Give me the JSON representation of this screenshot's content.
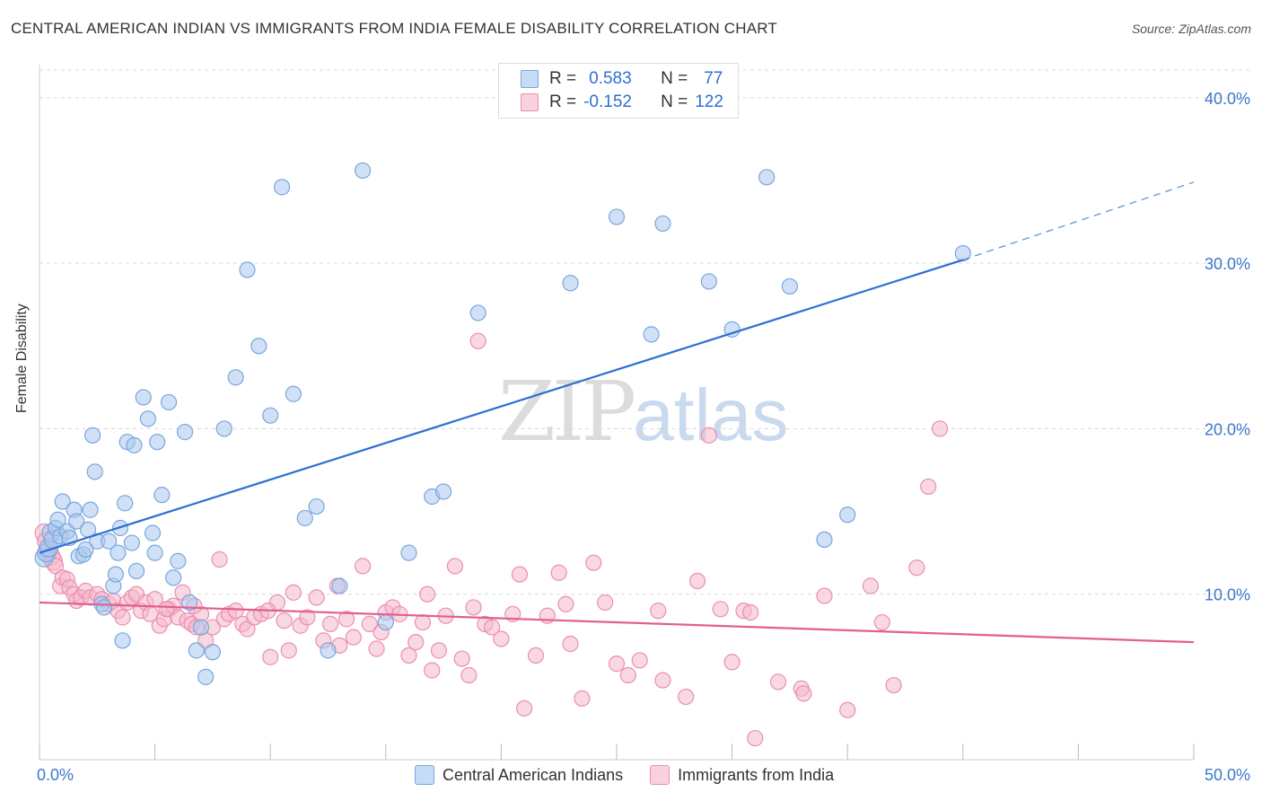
{
  "title": "CENTRAL AMERICAN INDIAN VS IMMIGRANTS FROM INDIA FEMALE DISABILITY CORRELATION CHART",
  "source": "Source: ZipAtlas.com",
  "watermark": {
    "zip": "ZIP",
    "atlas": "atlas"
  },
  "legend_top": {
    "rows": [
      {
        "r_label": "R =",
        "r_value": "0.583",
        "n_label": "N =",
        "n_value": "77"
      },
      {
        "r_label": "R =",
        "r_value": "-0.152",
        "n_label": "N =",
        "n_value": "122"
      }
    ]
  },
  "colors": {
    "blue_fill": "#a9c8f0",
    "blue_stroke": "#7aa6dc",
    "blue_line": "#2f6fd0",
    "pink_fill": "#f6b8cb",
    "pink_stroke": "#e98fb0",
    "pink_line": "#e0608f",
    "grid": "#d9d9d9",
    "axis_text": "#3a78c9"
  },
  "chart_data": {
    "type": "scatter",
    "title": "CENTRAL AMERICAN INDIAN VS IMMIGRANTS FROM INDIA FEMALE DISABILITY CORRELATION CHART",
    "xlabel": "",
    "ylabel": "Female Disability",
    "xlim": [
      0,
      50
    ],
    "ylim": [
      0,
      42
    ],
    "x_tick_labels": [
      "0.0%",
      "50.0%"
    ],
    "y_ticks": [
      10,
      20,
      30,
      40
    ],
    "y_tick_labels": [
      "10.0%",
      "20.0%",
      "30.0%",
      "40.0%"
    ],
    "grid": true,
    "legend_position": "top-center",
    "series": [
      {
        "name": "Central American Indians",
        "r": 0.583,
        "n": 77,
        "trend": {
          "x0": 0,
          "y0": 12.5,
          "x1": 40,
          "y1": 30.2,
          "dash_to_x": 50,
          "dash_to_y": 34.9
        },
        "points": [
          [
            0.2,
            12.2
          ],
          [
            0.3,
            12.5
          ],
          [
            0.4,
            12.8
          ],
          [
            0.5,
            13.7
          ],
          [
            0.6,
            13.3
          ],
          [
            0.7,
            14.0
          ],
          [
            0.8,
            14.5
          ],
          [
            0.9,
            13.5
          ],
          [
            1.0,
            15.6
          ],
          [
            1.2,
            13.8
          ],
          [
            1.3,
            13.4
          ],
          [
            1.5,
            15.1
          ],
          [
            1.6,
            14.4
          ],
          [
            1.7,
            12.3
          ],
          [
            1.9,
            12.4
          ],
          [
            2.0,
            12.7
          ],
          [
            2.1,
            13.9
          ],
          [
            2.2,
            15.1
          ],
          [
            2.3,
            19.6
          ],
          [
            2.4,
            17.4
          ],
          [
            2.5,
            13.2
          ],
          [
            2.7,
            9.4
          ],
          [
            2.8,
            9.2
          ],
          [
            3.0,
            13.2
          ],
          [
            3.2,
            10.5
          ],
          [
            3.3,
            11.2
          ],
          [
            3.4,
            12.5
          ],
          [
            3.5,
            14.0
          ],
          [
            3.7,
            15.5
          ],
          [
            3.8,
            19.2
          ],
          [
            4.0,
            13.1
          ],
          [
            4.1,
            19.0
          ],
          [
            4.2,
            11.4
          ],
          [
            4.5,
            21.9
          ],
          [
            4.7,
            20.6
          ],
          [
            4.9,
            13.7
          ],
          [
            5.0,
            12.5
          ],
          [
            5.1,
            19.2
          ],
          [
            5.3,
            16.0
          ],
          [
            5.6,
            21.6
          ],
          [
            5.8,
            11.0
          ],
          [
            6.0,
            12.0
          ],
          [
            6.3,
            19.8
          ],
          [
            6.5,
            9.5
          ],
          [
            6.8,
            6.6
          ],
          [
            7.0,
            8.0
          ],
          [
            7.2,
            5.0
          ],
          [
            7.5,
            6.5
          ],
          [
            8.0,
            20.0
          ],
          [
            8.5,
            23.1
          ],
          [
            9.0,
            29.6
          ],
          [
            9.5,
            25.0
          ],
          [
            10.0,
            20.8
          ],
          [
            10.5,
            34.6
          ],
          [
            11.0,
            22.1
          ],
          [
            11.5,
            14.6
          ],
          [
            12.0,
            15.3
          ],
          [
            12.5,
            6.6
          ],
          [
            13.0,
            10.5
          ],
          [
            14.0,
            35.6
          ],
          [
            15.0,
            8.3
          ],
          [
            16.0,
            12.5
          ],
          [
            17.0,
            15.9
          ],
          [
            17.5,
            16.2
          ],
          [
            19.0,
            27.0
          ],
          [
            23.0,
            28.8
          ],
          [
            25.0,
            32.8
          ],
          [
            26.5,
            25.7
          ],
          [
            27.0,
            32.4
          ],
          [
            29.0,
            28.9
          ],
          [
            30.0,
            26.0
          ],
          [
            31.5,
            35.2
          ],
          [
            32.5,
            28.6
          ],
          [
            34.0,
            13.3
          ],
          [
            35.0,
            14.8
          ],
          [
            40.0,
            30.6
          ],
          [
            3.6,
            7.2
          ]
        ]
      },
      {
        "name": "Immigrants from India",
        "r": -0.152,
        "n": 122,
        "trend": {
          "x0": 0,
          "y0": 9.5,
          "x1": 50,
          "y1": 7.1
        },
        "points": [
          [
            0.2,
            13.7
          ],
          [
            0.3,
            13.2
          ],
          [
            0.4,
            12.6
          ],
          [
            0.5,
            12.3
          ],
          [
            0.6,
            12.0
          ],
          [
            0.7,
            11.7
          ],
          [
            0.9,
            10.5
          ],
          [
            1.0,
            11.0
          ],
          [
            1.2,
            10.9
          ],
          [
            1.3,
            10.4
          ],
          [
            1.5,
            10.0
          ],
          [
            1.6,
            9.6
          ],
          [
            1.8,
            9.8
          ],
          [
            2.0,
            10.2
          ],
          [
            2.2,
            9.8
          ],
          [
            2.5,
            10.0
          ],
          [
            2.7,
            9.7
          ],
          [
            3.0,
            9.4
          ],
          [
            3.2,
            9.6
          ],
          [
            3.4,
            9.0
          ],
          [
            3.6,
            8.6
          ],
          [
            3.8,
            9.5
          ],
          [
            4.0,
            9.8
          ],
          [
            4.2,
            10.0
          ],
          [
            4.4,
            9.0
          ],
          [
            4.6,
            9.5
          ],
          [
            4.8,
            8.8
          ],
          [
            5.0,
            9.7
          ],
          [
            5.2,
            8.1
          ],
          [
            5.4,
            8.5
          ],
          [
            5.6,
            9.1
          ],
          [
            5.8,
            9.3
          ],
          [
            6.0,
            8.6
          ],
          [
            6.2,
            10.1
          ],
          [
            6.4,
            8.4
          ],
          [
            6.6,
            8.2
          ],
          [
            6.8,
            8.0
          ],
          [
            7.0,
            8.8
          ],
          [
            7.2,
            7.2
          ],
          [
            7.5,
            8.0
          ],
          [
            7.8,
            12.1
          ],
          [
            8.0,
            8.5
          ],
          [
            8.2,
            8.8
          ],
          [
            8.5,
            9.0
          ],
          [
            8.8,
            8.2
          ],
          [
            9.0,
            7.9
          ],
          [
            9.3,
            8.6
          ],
          [
            9.6,
            8.8
          ],
          [
            10.0,
            6.2
          ],
          [
            10.3,
            9.5
          ],
          [
            10.6,
            8.4
          ],
          [
            11.0,
            10.1
          ],
          [
            11.3,
            8.1
          ],
          [
            11.6,
            8.6
          ],
          [
            12.0,
            9.8
          ],
          [
            12.3,
            7.2
          ],
          [
            12.6,
            8.2
          ],
          [
            13.0,
            6.9
          ],
          [
            13.3,
            8.5
          ],
          [
            13.6,
            7.4
          ],
          [
            14.0,
            11.7
          ],
          [
            14.3,
            8.2
          ],
          [
            14.6,
            6.7
          ],
          [
            15.0,
            8.9
          ],
          [
            15.3,
            9.2
          ],
          [
            15.6,
            8.8
          ],
          [
            16.0,
            6.3
          ],
          [
            16.3,
            7.1
          ],
          [
            16.6,
            8.3
          ],
          [
            17.0,
            5.4
          ],
          [
            17.3,
            6.6
          ],
          [
            17.6,
            8.7
          ],
          [
            18.0,
            11.7
          ],
          [
            18.3,
            6.1
          ],
          [
            18.6,
            5.1
          ],
          [
            19.0,
            25.3
          ],
          [
            19.3,
            8.2
          ],
          [
            19.6,
            8.0
          ],
          [
            20.0,
            7.3
          ],
          [
            20.5,
            8.8
          ],
          [
            21.0,
            3.1
          ],
          [
            21.5,
            6.3
          ],
          [
            22.0,
            8.7
          ],
          [
            22.5,
            11.3
          ],
          [
            23.0,
            7.0
          ],
          [
            23.5,
            3.7
          ],
          [
            24.0,
            11.9
          ],
          [
            24.5,
            9.5
          ],
          [
            25.0,
            5.8
          ],
          [
            25.5,
            5.1
          ],
          [
            26.0,
            6.0
          ],
          [
            27.0,
            4.8
          ],
          [
            28.0,
            3.8
          ],
          [
            28.5,
            10.8
          ],
          [
            29.0,
            19.6
          ],
          [
            29.5,
            9.1
          ],
          [
            30.0,
            5.9
          ],
          [
            30.5,
            9.0
          ],
          [
            31.0,
            1.3
          ],
          [
            32.0,
            4.7
          ],
          [
            33.0,
            4.3
          ],
          [
            34.0,
            9.9
          ],
          [
            35.0,
            3.0
          ],
          [
            36.0,
            10.5
          ],
          [
            36.5,
            8.3
          ],
          [
            37.0,
            4.5
          ],
          [
            38.0,
            11.6
          ],
          [
            38.5,
            16.5
          ],
          [
            39.0,
            20.0
          ],
          [
            33.1,
            4.0
          ],
          [
            14.8,
            7.7
          ],
          [
            10.8,
            6.6
          ],
          [
            6.7,
            9.3
          ],
          [
            5.5,
            9.1
          ],
          [
            9.9,
            9.0
          ],
          [
            12.9,
            10.5
          ],
          [
            16.8,
            10.0
          ],
          [
            18.8,
            9.2
          ],
          [
            20.8,
            11.2
          ],
          [
            22.8,
            9.4
          ],
          [
            26.8,
            9.0
          ],
          [
            30.8,
            8.9
          ]
        ]
      }
    ]
  },
  "bottom_legend": [
    {
      "label": "Central American Indians"
    },
    {
      "label": "Immigrants from India"
    }
  ]
}
